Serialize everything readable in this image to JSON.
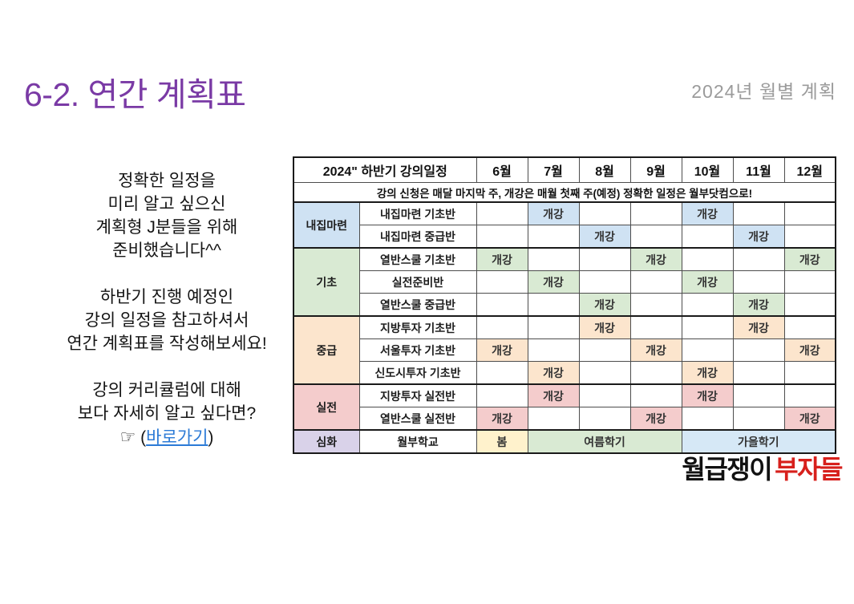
{
  "slide": {
    "title": "6-2. 연간 계획표",
    "corner_label": "2024년 월별 계획"
  },
  "intro": {
    "p1": [
      "정확한 일정을",
      "미리 알고 싶으신",
      "계획형 J분들을 위해",
      "준비했습니다^^"
    ],
    "p2": [
      "하반기 진행 예정인",
      "강의 일정을 참고하셔서",
      "연간 계획표를 작성해보세요!"
    ],
    "p3": [
      "강의 커리큘럼에 대해",
      "보다 자세히 알고 싶다면?"
    ],
    "hand_icon": "☞",
    "link_open": "(",
    "link_text": "바로가기",
    "link_close": ")"
  },
  "schedule": {
    "header_title": "2024\" 하반기 강의일정",
    "months": [
      "6월",
      "7월",
      "8월",
      "9월",
      "10월",
      "11월",
      "12월"
    ],
    "notice": "강의 신청은 매달 마지막 주, 개강은 매월 첫째 주(예정) 정확한 일정은 월부닷컴으로!",
    "open_label": "개강",
    "palette": {
      "blue": "#cfe2f3",
      "green": "#d9ead3",
      "orange": "#fce5cd",
      "pink": "#f4cccc",
      "purple": "#d9d2e9",
      "yellow": "#fff2cc",
      "ltblue": "#d6e8f6"
    },
    "groups": [
      {
        "label": "내집마련",
        "color": "blue",
        "rows": [
          {
            "course": "내집마련 기초반",
            "open": [
              "7월",
              "10월"
            ]
          },
          {
            "course": "내집마련 중급반",
            "open": [
              "8월",
              "11월"
            ]
          }
        ]
      },
      {
        "label": "기초",
        "color": "green",
        "rows": [
          {
            "course": "열반스쿨 기초반",
            "open": [
              "6월",
              "9월",
              "12월"
            ]
          },
          {
            "course": "실전준비반",
            "open": [
              "7월",
              "10월"
            ]
          },
          {
            "course": "열반스쿨 중급반",
            "open": [
              "8월",
              "11월"
            ]
          }
        ]
      },
      {
        "label": "중급",
        "color": "orange",
        "rows": [
          {
            "course": "지방투자 기초반",
            "open": [
              "8월",
              "11월"
            ]
          },
          {
            "course": "서울투자 기초반",
            "open": [
              "6월",
              "9월",
              "12월"
            ]
          },
          {
            "course": "신도시투자 기초반",
            "open": [
              "7월",
              "10월"
            ]
          }
        ]
      },
      {
        "label": "실전",
        "color": "pink",
        "rows": [
          {
            "course": "지방투자 실전반",
            "open": [
              "7월",
              "10월"
            ]
          },
          {
            "course": "열반스쿨 실전반",
            "open": [
              "6월",
              "9월",
              "12월"
            ]
          }
        ]
      }
    ],
    "advanced": {
      "label": "심화",
      "color": "purple",
      "course": "월부학교",
      "terms": [
        {
          "label": "봄",
          "span": 1,
          "color": "yellow"
        },
        {
          "label": "여름학기",
          "span": 3,
          "color": "green"
        },
        {
          "label": "가을학기",
          "span": 3,
          "color": "ltblue"
        }
      ]
    }
  },
  "logo": {
    "black": "월급쟁이",
    "red": "부자들"
  }
}
